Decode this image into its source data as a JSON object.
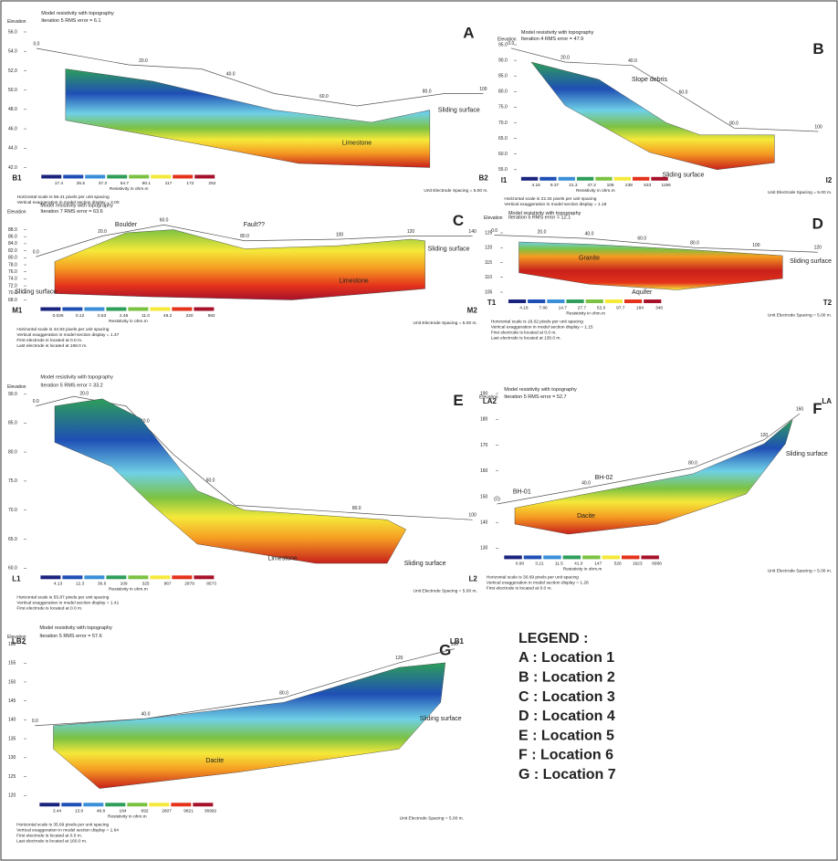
{
  "panels": [
    {
      "letter": "A",
      "title": "Model resistivity with topography",
      "subtitle": "Iteration 5 RMS error = 6.1",
      "elevation_label": "Elevation",
      "elevations": [
        "56.0",
        "54.0",
        "52.0",
        "50.0",
        "48.0",
        "46.0",
        "44.0",
        "42.0"
      ],
      "distances": [
        "0.0",
        "20.0",
        "40.0",
        "60.0",
        "80.0",
        "100"
      ],
      "colorbar": [
        "17.4",
        "25.5",
        "37.3",
        "54.7",
        "80.1",
        "117",
        "172",
        "252"
      ],
      "colorbar_label": "Resistivity in ohm.m",
      "start": "B1",
      "end": "B2",
      "spacing": "Unit Electrode Spacing = 5.00 m.",
      "annotations": [
        "Sliding surface",
        "Limestone"
      ],
      "notes": [
        "Horizontal scale is 58.41 pixels per unit spacing",
        "Vertical exaggeration in model section display = 2.00"
      ]
    },
    {
      "letter": "B",
      "title": "Model resistivity with topography",
      "subtitle": "Iteration 4 RMS error = 47.9",
      "elevation_label": "Elevation",
      "elevations": [
        "95.0",
        "90.0",
        "85.0",
        "80.0",
        "75.0",
        "70.0",
        "65.0",
        "60.0",
        "55.0"
      ],
      "distances": [
        "0.0",
        "20.0",
        "40.0",
        "60.0",
        "80.0",
        "100"
      ],
      "colorbar": [
        "4.16",
        "9.37",
        "21.3",
        "47.2",
        "106",
        "238",
        "533",
        "1196"
      ],
      "colorbar_label": "Resistivity in ohm.m",
      "start": "I1",
      "end": "I2",
      "spacing": "Unit Electrode Spacing = 5.00 m.",
      "annotations": [
        "Slope debris",
        "Sliding surface"
      ],
      "notes": [
        "Horizontal scale is 22.34 pixels per unit spacing",
        "Vertical exaggeration in model section display = 1.18"
      ]
    },
    {
      "letter": "C",
      "title": "Model resistivity with topography",
      "subtitle": "Iteration 7 RMS error = 63.6",
      "elevation_label": "Elevation",
      "elevations": [
        "88.0",
        "86.0",
        "84.0",
        "82.0",
        "80.0",
        "78.0",
        "76.0",
        "74.0",
        "72.0",
        "70.0",
        "68.0"
      ],
      "distances": [
        "0.0",
        "20.0",
        "60.0",
        "80.0",
        "100",
        "120",
        "140"
      ],
      "colorbar": [
        "0.026",
        "0.12",
        "0.53",
        "2.46",
        "11.0",
        "49.2",
        "220",
        "982"
      ],
      "colorbar_label": "Resistivity in ohm.m",
      "start": "M1",
      "end": "M2",
      "spacing": "Unit Electrode Spacing = 5.00 m.",
      "annotations": [
        "Boulder",
        "Fault??",
        "Sliding surface",
        "Sliding surface",
        "Limestone"
      ],
      "notes": [
        "Horizontal scale is 42.83 pixels per unit spacing",
        "Vertical exaggeration in model section display = 1.37",
        "First electrode is located at 0.0 m.",
        "Last electrode is located at 168.0 m."
      ]
    },
    {
      "letter": "D",
      "title": "Model resistivity with topography",
      "subtitle": "Iteration 5 RMS error = 12.1",
      "elevation_label": "Elevation",
      "elevations": [
        "125",
        "120",
        "115",
        "110",
        "105"
      ],
      "distances": [
        "0.0",
        "20.0",
        "40.0",
        "60.0",
        "80.0",
        "100",
        "120"
      ],
      "colorbar": [
        "4.18",
        "7.86",
        "14.7",
        "27.7",
        "52.0",
        "97.7",
        "184",
        "346"
      ],
      "colorbar_label": "Resistivity in ohm.m",
      "start": "T1",
      "end": "T2",
      "spacing": "Unit Electrode Spacing = 5.00 m.",
      "annotations": [
        "Granite",
        "Aquifer",
        "Sliding surface"
      ],
      "notes": [
        "Horizontal scale is 16.02 pixels per unit spacing",
        "Vertical exaggeration in model section display = 1.15",
        "First electrode is located at 0.0 m.",
        "Last electrode is located at 130.0 m."
      ]
    },
    {
      "letter": "E",
      "title": "Model resistivity with topography",
      "subtitle": "Iteration 5 RMS error = 33.2",
      "elevation_label": "Elevation",
      "elevations": [
        "90.0",
        "85.0",
        "80.0",
        "75.0",
        "70.0",
        "65.0",
        "60.0"
      ],
      "distances": [
        "0.0",
        "20.0",
        "40.0",
        "60.0",
        "80.0",
        "100"
      ],
      "colorbar": [
        "4.13",
        "12.3",
        "36.6",
        "109",
        "325",
        "967",
        "2879",
        "8573"
      ],
      "colorbar_label": "Resistivity in ohm.m",
      "start": "L1",
      "end": "L2",
      "spacing": "Unit Electrode Spacing = 5.00 m.",
      "annotations": [
        "Limestone",
        "Sliding surface"
      ],
      "notes": [
        "Horizontal scale is 55.87 pixels per unit spacing",
        "Vertical exaggeration in model section display = 1.41",
        "First electrode is located at 0.0 m."
      ]
    },
    {
      "letter": "F",
      "title": "Model resistivity with topography",
      "subtitle": "Iteration 5 RMS error = 52.7",
      "elevation_label": "Elevation",
      "elevations": [
        "190",
        "180",
        "170",
        "160",
        "150",
        "140",
        "130"
      ],
      "distances": [
        "0.0",
        "40.0",
        "80.0",
        "120",
        "160"
      ],
      "colorbar": [
        "0.90",
        "3.21",
        "11.5",
        "41.0",
        "147",
        "526",
        "1923",
        "6956"
      ],
      "colorbar_label": "Resistivity in ohm.m",
      "start": "LA2",
      "end": "LA",
      "spacing": "Unit Electrode Spacing = 5.00 m.",
      "annotations": [
        "BH-01",
        "BH-02",
        "Dacite",
        "Sliding surface"
      ],
      "notes": [
        "Horizontal scale is 30.69 pixels per unit spacing",
        "Vertical exaggeration in model section display = 1.28",
        "First electrode is located at 0.0 m."
      ]
    },
    {
      "letter": "G",
      "title": "Model resistivity with topography",
      "subtitle": "Iteration 5 RMS error = 57.6",
      "elevation_label": "Elevation",
      "elevations": [
        "160",
        "155",
        "150",
        "145",
        "140",
        "135",
        "130",
        "125",
        "120"
      ],
      "distances": [
        "0.0",
        "40.0",
        "80.0",
        "120",
        "160"
      ],
      "colorbar": [
        "3.44",
        "13.0",
        "48.8",
        "184",
        "692",
        "2607",
        "9821",
        "36992"
      ],
      "colorbar_label": "Resistivity in ohm.m",
      "start": "LB2",
      "end": "LB1",
      "spacing": "Unit Electrode Spacing = 5.00 m.",
      "annotations": [
        "Dacite",
        "Sliding surface"
      ],
      "notes": [
        "Horizontal scale is 35.69 pixels per unit spacing",
        "Vertical exaggeration in model section display = 1.64",
        "First electrode is located at 0.0 m.",
        "Last electrode is located at 160.0 m."
      ]
    }
  ],
  "legend": {
    "title": "LEGEND :",
    "items": [
      "A : Location 1",
      "B : Location 2",
      "C : Location 3",
      "D : Location 4",
      "E : Location 5",
      "F : Location 6",
      "G : Location 7"
    ]
  }
}
